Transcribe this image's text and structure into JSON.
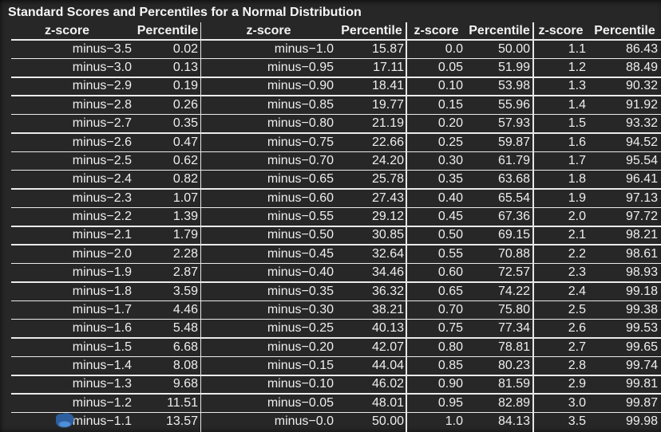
{
  "title": "Standard Scores and Percentiles for a Normal Distribution",
  "colors": {
    "background": "#272727",
    "text": "#eeeeee",
    "grid_lines": "#ebebeb",
    "cursor_body": "#2d5f9e",
    "cursor_highlight": "#4e8fd6"
  },
  "cursor": {
    "name": "touch-cursor-indicator"
  },
  "table": {
    "column_groups": [
      {
        "z_header": "z-score",
        "p_header": "Percentile",
        "rows": [
          [
            "minus−3.5",
            "0.02"
          ],
          [
            "minus−3.0",
            "0.13"
          ],
          [
            "minus−2.9",
            "0.19"
          ],
          [
            "minus−2.8",
            "0.26"
          ],
          [
            "minus−2.7",
            "0.35"
          ],
          [
            "minus−2.6",
            "0.47"
          ],
          [
            "minus−2.5",
            "0.62"
          ],
          [
            "minus−2.4",
            "0.82"
          ],
          [
            "minus−2.3",
            "1.07"
          ],
          [
            "minus−2.2",
            "1.39"
          ],
          [
            "minus−2.1",
            "1.79"
          ],
          [
            "minus−2.0",
            "2.28"
          ],
          [
            "minus−1.9",
            "2.87"
          ],
          [
            "minus−1.8",
            "3.59"
          ],
          [
            "minus−1.7",
            "4.46"
          ],
          [
            "minus−1.6",
            "5.48"
          ],
          [
            "minus−1.5",
            "6.68"
          ],
          [
            "minus−1.4",
            "8.08"
          ],
          [
            "minus−1.3",
            "9.68"
          ],
          [
            "minus−1.2",
            "11.51"
          ],
          [
            "minus−1.1",
            "13.57"
          ]
        ]
      },
      {
        "z_header": "z-score",
        "p_header": "Percentile",
        "rows": [
          [
            "minus−1.0",
            "15.87"
          ],
          [
            "minus−0.95",
            "17.11"
          ],
          [
            "minus−0.90",
            "18.41"
          ],
          [
            "minus−0.85",
            "19.77"
          ],
          [
            "minus−0.80",
            "21.19"
          ],
          [
            "minus−0.75",
            "22.66"
          ],
          [
            "minus−0.70",
            "24.20"
          ],
          [
            "minus−0.65",
            "25.78"
          ],
          [
            "minus−0.60",
            "27.43"
          ],
          [
            "minus−0.55",
            "29.12"
          ],
          [
            "minus−0.50",
            "30.85"
          ],
          [
            "minus−0.45",
            "32.64"
          ],
          [
            "minus−0.40",
            "34.46"
          ],
          [
            "minus−0.35",
            "36.32"
          ],
          [
            "minus−0.30",
            "38.21"
          ],
          [
            "minus−0.25",
            "40.13"
          ],
          [
            "minus−0.20",
            "42.07"
          ],
          [
            "minus−0.15",
            "44.04"
          ],
          [
            "minus−0.10",
            "46.02"
          ],
          [
            "minus−0.05",
            "48.01"
          ],
          [
            "minus−0.0",
            "50.00"
          ]
        ]
      },
      {
        "z_header": "z-score",
        "p_header": "Percentile",
        "rows": [
          [
            "0.0",
            "50.00"
          ],
          [
            "0.05",
            "51.99"
          ],
          [
            "0.10",
            "53.98"
          ],
          [
            "0.15",
            "55.96"
          ],
          [
            "0.20",
            "57.93"
          ],
          [
            "0.25",
            "59.87"
          ],
          [
            "0.30",
            "61.79"
          ],
          [
            "0.35",
            "63.68"
          ],
          [
            "0.40",
            "65.54"
          ],
          [
            "0.45",
            "67.36"
          ],
          [
            "0.50",
            "69.15"
          ],
          [
            "0.55",
            "70.88"
          ],
          [
            "0.60",
            "72.57"
          ],
          [
            "0.65",
            "74.22"
          ],
          [
            "0.70",
            "75.80"
          ],
          [
            "0.75",
            "77.34"
          ],
          [
            "0.80",
            "78.81"
          ],
          [
            "0.85",
            "80.23"
          ],
          [
            "0.90",
            "81.59"
          ],
          [
            "0.95",
            "82.89"
          ],
          [
            "1.0",
            "84.13"
          ]
        ]
      },
      {
        "z_header": "z-score",
        "p_header": "Percentile",
        "rows": [
          [
            "1.1",
            "86.43"
          ],
          [
            "1.2",
            "88.49"
          ],
          [
            "1.3",
            "90.32"
          ],
          [
            "1.4",
            "91.92"
          ],
          [
            "1.5",
            "93.32"
          ],
          [
            "1.6",
            "94.52"
          ],
          [
            "1.7",
            "95.54"
          ],
          [
            "1.8",
            "96.41"
          ],
          [
            "1.9",
            "97.13"
          ],
          [
            "2.0",
            "97.72"
          ],
          [
            "2.1",
            "98.21"
          ],
          [
            "2.2",
            "98.61"
          ],
          [
            "2.3",
            "98.93"
          ],
          [
            "2.4",
            "99.18"
          ],
          [
            "2.5",
            "99.38"
          ],
          [
            "2.6",
            "99.53"
          ],
          [
            "2.7",
            "99.65"
          ],
          [
            "2.8",
            "99.74"
          ],
          [
            "2.9",
            "99.81"
          ],
          [
            "3.0",
            "99.87"
          ],
          [
            "3.5",
            "99.98"
          ]
        ]
      }
    ]
  }
}
